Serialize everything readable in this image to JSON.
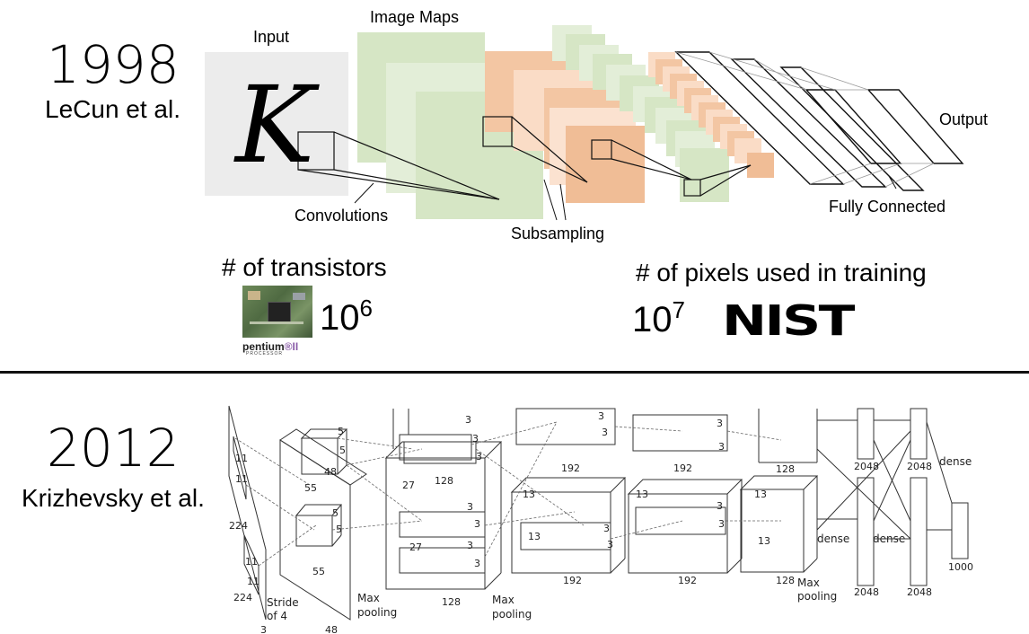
{
  "lenet": {
    "year": "1998",
    "author": "LeCun et al.",
    "input_label": "Input",
    "input_glyph": "K",
    "image_maps_label": "Image Maps",
    "output_label": "Output",
    "convolutions_label": "Convolutions",
    "subsampling_label": "Subsampling",
    "fully_connected_label": "Fully Connected"
  },
  "stats": {
    "transistors_label": "# of transistors",
    "transistors_base": "10",
    "transistors_exp": "6",
    "chip_brand": "pentium",
    "chip_suffix": "®II",
    "chip_sub": "PROCESSOR",
    "pixels_label": "# of pixels used in training",
    "pixels_base": "10",
    "pixels_exp": "7",
    "dataset_logo": "NIST"
  },
  "alexnet": {
    "year": "2012",
    "author": "Krizhevsky et al.",
    "labels": {
      "n11a": "11",
      "n11b": "11",
      "n224a": "224",
      "n224b": "224",
      "n11c": "11",
      "n11d": "11",
      "stride": "Stride",
      "stride_of": "of 4",
      "n3": "3",
      "n5a": "5",
      "n5b": "5",
      "n48a": "48",
      "n55a": "55",
      "n5c": "5",
      "n5d": "5",
      "n55b": "55",
      "n48b": "48",
      "max_pool_1a": "Max",
      "max_pool_1b": "pooling",
      "n3a": "3",
      "n3b": "3",
      "n3c": "3",
      "n128a": "128",
      "n27a": "27",
      "n3d": "3",
      "n3e": "3",
      "n27b": "27",
      "n3f": "3",
      "n3g": "3",
      "n128b": "128",
      "max_pool_2a": "Max",
      "max_pool_2b": "pooling",
      "n3h": "3",
      "n3i": "3",
      "n192a": "192",
      "n13a": "13",
      "n13b": "13",
      "n3j": "3",
      "n3k": "3",
      "n192b": "192",
      "n3l": "3",
      "n3m": "3",
      "n192c": "192",
      "n13c": "13",
      "n3n": "3",
      "n3o": "3",
      "n192d": "192",
      "n128c": "128",
      "n13d": "13",
      "n13e": "13",
      "n128d": "128",
      "max_pool_3a": "Max",
      "max_pool_3b": "pooling",
      "n2048a": "2048",
      "n2048b": "2048",
      "n2048c": "2048",
      "n2048d": "2048",
      "dense_a": "dense",
      "dense_b": "dense",
      "dense_c": "dense",
      "n1000": "1000"
    }
  },
  "colors": {
    "green": "#d5e6c4",
    "green_light": "#e6f0da",
    "orange": "#f2c4a0",
    "orange_light": "#fadfca",
    "grey_input": "#ececec",
    "divider": "#111111"
  }
}
